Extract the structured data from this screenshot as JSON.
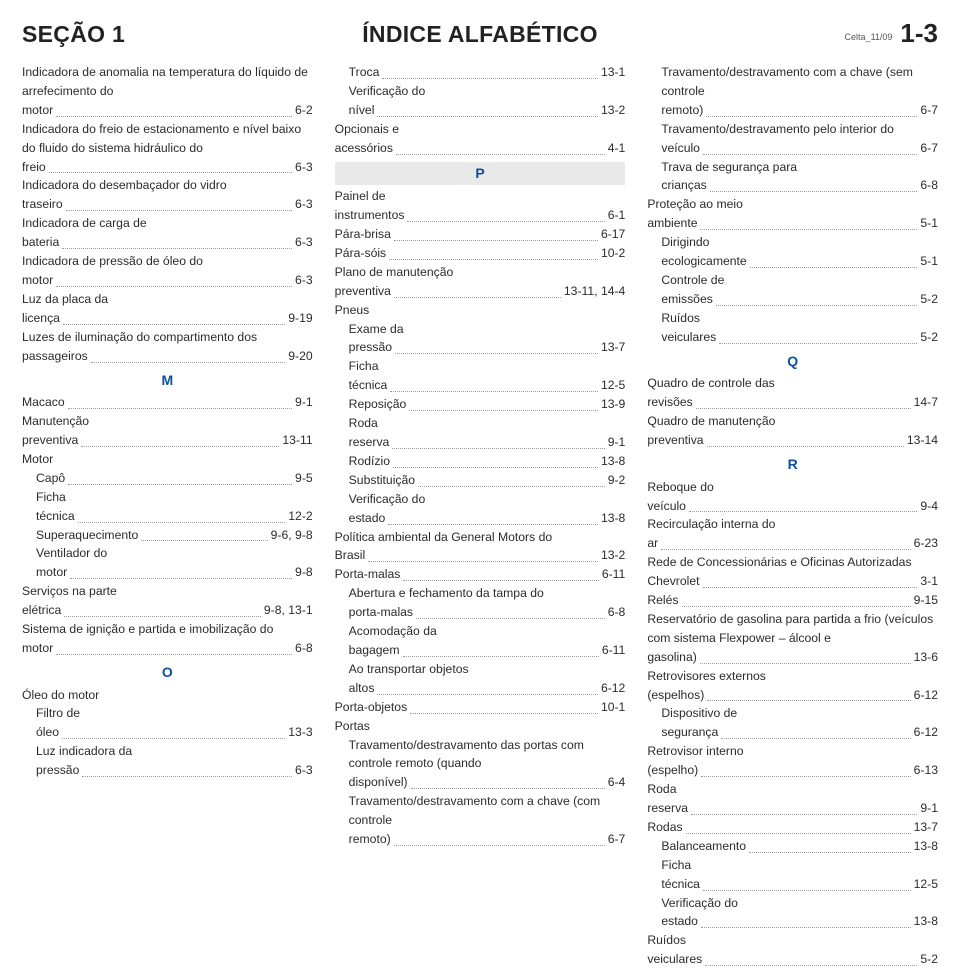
{
  "header": {
    "section": "SEÇÃO 1",
    "title": "ÍNDICE ALFABÉTICO",
    "meta": "Celta_11/09",
    "page": "1-3"
  },
  "col1": [
    {
      "t": "entry",
      "label": "Indicadora de anomalia na temperatura do líquido de arrefecimento do motor",
      "page": "6-2"
    },
    {
      "t": "entry",
      "label": "Indicadora do freio de estacionamento e nível baixo do fluido do sistema hidráulico do freio",
      "page": "6-3"
    },
    {
      "t": "entry",
      "label": "Indicadora do desembaçador do vidro traseiro",
      "page": "6-3"
    },
    {
      "t": "entry",
      "label": "Indicadora de carga de bateria",
      "page": "6-3"
    },
    {
      "t": "entry",
      "label": "Indicadora de pressão de óleo do motor",
      "page": "6-3"
    },
    {
      "t": "entry",
      "label": "Luz da placa da licença",
      "page": "9-19"
    },
    {
      "t": "entry",
      "label": "Luzes de iluminação do compartimento dos passageiros",
      "page": "9-20"
    },
    {
      "t": "letter",
      "char": "M"
    },
    {
      "t": "entry",
      "label": "Macaco",
      "page": "9-1"
    },
    {
      "t": "entry",
      "label": "Manutenção preventiva",
      "page": "13-11"
    },
    {
      "t": "text",
      "label": "Motor"
    },
    {
      "t": "entry",
      "label": "Capô",
      "page": "9-5",
      "sub": true
    },
    {
      "t": "entry",
      "label": "Ficha técnica",
      "page": "12-2",
      "sub": true
    },
    {
      "t": "entry",
      "label": "Superaquecimento",
      "page": "9-6, 9-8",
      "sub": true
    },
    {
      "t": "entry",
      "label": "Ventilador do motor",
      "page": "9-8",
      "sub": true
    },
    {
      "t": "entry",
      "label": "Serviços na parte elétrica",
      "page": "9-8, 13-1"
    },
    {
      "t": "entry",
      "label": "Sistema de ignição e partida e imobilização do motor",
      "page": "6-8"
    },
    {
      "t": "letter",
      "char": "O"
    },
    {
      "t": "text",
      "label": "Óleo do motor"
    },
    {
      "t": "entry",
      "label": "Filtro de óleo",
      "page": "13-3",
      "sub": true
    },
    {
      "t": "entry",
      "label": "Luz indicadora da pressão",
      "page": "6-3",
      "sub": true
    }
  ],
  "col2": [
    {
      "t": "entry",
      "label": "Troca",
      "page": "13-1",
      "sub": true
    },
    {
      "t": "entry",
      "label": "Verificação do nível",
      "page": "13-2",
      "sub": true
    },
    {
      "t": "entry",
      "label": "Opcionais e acessórios",
      "page": "4-1"
    },
    {
      "t": "letterbar",
      "char": "P"
    },
    {
      "t": "entry",
      "label": "Painel de instrumentos",
      "page": "6-1"
    },
    {
      "t": "entry",
      "label": "Pára-brisa",
      "page": "6-17"
    },
    {
      "t": "entry",
      "label": "Pára-sóis",
      "page": "10-2"
    },
    {
      "t": "entry",
      "label": "Plano de manutenção preventiva",
      "page": "13-11, 14-4"
    },
    {
      "t": "text",
      "label": "Pneus"
    },
    {
      "t": "entry",
      "label": "Exame da pressão",
      "page": "13-7",
      "sub": true
    },
    {
      "t": "entry",
      "label": "Ficha técnica",
      "page": "12-5",
      "sub": true
    },
    {
      "t": "entry",
      "label": "Reposição",
      "page": "13-9",
      "sub": true
    },
    {
      "t": "entry",
      "label": "Roda reserva",
      "page": "9-1",
      "sub": true
    },
    {
      "t": "entry",
      "label": "Rodízio",
      "page": "13-8",
      "sub": true
    },
    {
      "t": "entry",
      "label": "Substituição",
      "page": "9-2",
      "sub": true
    },
    {
      "t": "entry",
      "label": "Verificação do estado",
      "page": "13-8",
      "sub": true
    },
    {
      "t": "entry",
      "label": "Política ambiental da General Motors do Brasil",
      "page": "13-2"
    },
    {
      "t": "entry",
      "label": "Porta-malas",
      "page": "6-11"
    },
    {
      "t": "entry",
      "label": "Abertura e fechamento da tampa do porta-malas",
      "page": "6-8",
      "sub": true
    },
    {
      "t": "entry",
      "label": "Acomodação da bagagem",
      "page": "6-11",
      "sub": true
    },
    {
      "t": "entry",
      "label": "Ao transportar objetos altos",
      "page": "6-12",
      "sub": true
    },
    {
      "t": "entry",
      "label": "Porta-objetos",
      "page": "10-1"
    },
    {
      "t": "text",
      "label": "Portas"
    },
    {
      "t": "entry",
      "label": "Travamento/destravamento das portas com controle remoto (quando disponível)",
      "page": "6-4",
      "sub": true
    },
    {
      "t": "entry",
      "label": "Travamento/destravamento com a chave (com controle remoto)",
      "page": "6-7",
      "sub": true
    }
  ],
  "col3": [
    {
      "t": "entry",
      "label": "Travamento/destravamento com a chave (sem controle remoto)",
      "page": "6-7",
      "sub": true
    },
    {
      "t": "entry",
      "label": "Travamento/destravamento pelo interior do veículo",
      "page": "6-7",
      "sub": true
    },
    {
      "t": "entry",
      "label": "Trava de segurança para crianças",
      "page": "6-8",
      "sub": true
    },
    {
      "t": "entry",
      "label": "Proteção ao meio ambiente",
      "page": "5-1"
    },
    {
      "t": "entry",
      "label": "Dirigindo ecologicamente",
      "page": "5-1",
      "sub": true
    },
    {
      "t": "entry",
      "label": "Controle de emissões",
      "page": "5-2",
      "sub": true
    },
    {
      "t": "entry",
      "label": "Ruídos veiculares",
      "page": "5-2",
      "sub": true
    },
    {
      "t": "letter",
      "char": "Q"
    },
    {
      "t": "entry",
      "label": "Quadro de controle das revisões",
      "page": "14-7"
    },
    {
      "t": "entry",
      "label": "Quadro de manutenção preventiva",
      "page": "13-14"
    },
    {
      "t": "letter",
      "char": "R"
    },
    {
      "t": "entry",
      "label": "Reboque do veículo",
      "page": "9-4"
    },
    {
      "t": "entry",
      "label": "Recirculação interna do ar",
      "page": "6-23"
    },
    {
      "t": "entry",
      "label": "Rede de Concessionárias e Oficinas Autorizadas Chevrolet",
      "page": "3-1"
    },
    {
      "t": "entry",
      "label": "Relés",
      "page": "9-15"
    },
    {
      "t": "entry",
      "label": "Reservatório de gasolina para partida a frio (veículos com sistema Flexpower – álcool e gasolina)",
      "page": "13-6"
    },
    {
      "t": "entry",
      "label": "Retrovisores externos (espelhos)",
      "page": "6-12"
    },
    {
      "t": "entry",
      "label": "Dispositivo de segurança",
      "page": "6-12",
      "sub": true
    },
    {
      "t": "entry",
      "label": "Retrovisor interno (espelho)",
      "page": "6-13"
    },
    {
      "t": "entry",
      "label": "Roda reserva",
      "page": "9-1"
    },
    {
      "t": "entry",
      "label": "Rodas",
      "page": "13-7"
    },
    {
      "t": "entry",
      "label": "Balanceamento",
      "page": "13-8",
      "sub": true
    },
    {
      "t": "entry",
      "label": "Ficha técnica",
      "page": "12-5",
      "sub": true
    },
    {
      "t": "entry",
      "label": "Verificação do estado",
      "page": "13-8",
      "sub": true
    },
    {
      "t": "entry",
      "label": "Ruídos veiculares",
      "page": "5-2"
    }
  ]
}
